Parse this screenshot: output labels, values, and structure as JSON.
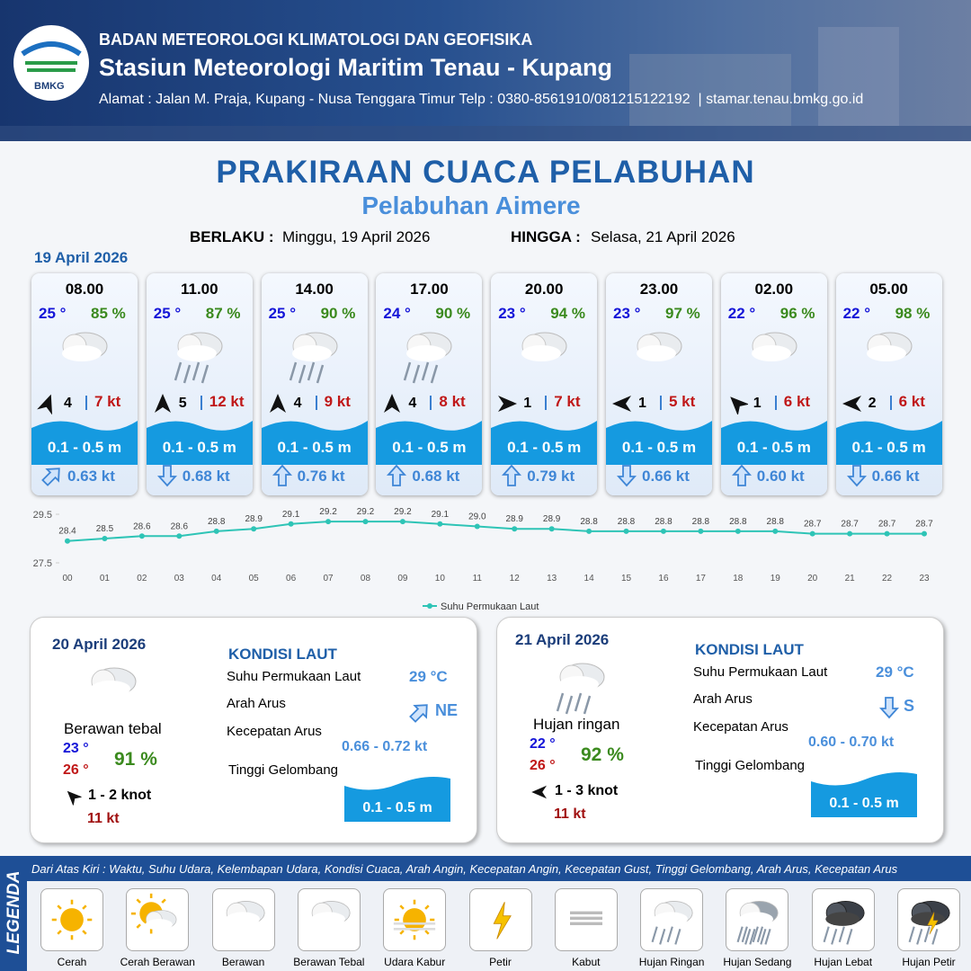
{
  "header": {
    "logo": "BMKG",
    "agency": "BADAN METEOROLOGI KLIMATOLOGI DAN GEOFISIKA",
    "station": "Stasiun Meteorologi Maritim Tenau - Kupang",
    "address": "Alamat : Jalan M. Praja, Kupang - Nusa Tenggara Timur Telp : 0380-8561910/081215122192  | stamar.tenau.bmkg.go.id"
  },
  "title": "PRAKIRAAN CUACA PELABUHAN",
  "subtitle": "Pelabuhan Aimere",
  "validity": {
    "from_label": "BERLAKU :",
    "from": "Minggu, 19 April 2026",
    "until_label": "HINGGA :",
    "until": "Selasa, 21 April 2026"
  },
  "today": {
    "date": "19 April 2026",
    "forecasts": [
      {
        "time": "08.00",
        "temp": "25 °",
        "humidity": "85 %",
        "wind": "4",
        "gust": "7 kt",
        "wave": "0.1 - 0.5 m",
        "current": "0.63 kt"
      },
      {
        "time": "11.00",
        "temp": "25 °",
        "humidity": "87 %",
        "wind": "5",
        "gust": "12 kt",
        "wave": "0.1 - 0.5 m",
        "current": "0.68 kt"
      },
      {
        "time": "14.00",
        "temp": "25 °",
        "humidity": "90 %",
        "wind": "4",
        "gust": "9 kt",
        "wave": "0.1 - 0.5 m",
        "current": "0.76 kt"
      },
      {
        "time": "17.00",
        "temp": "24 °",
        "humidity": "90 %",
        "wind": "4",
        "gust": "8 kt",
        "wave": "0.1 - 0.5 m",
        "current": "0.68 kt"
      },
      {
        "time": "20.00",
        "temp": "23 °",
        "humidity": "94 %",
        "wind": "1",
        "gust": "7 kt",
        "wave": "0.1 - 0.5 m",
        "current": "0.79 kt"
      },
      {
        "time": "23.00",
        "temp": "23 °",
        "humidity": "97 %",
        "wind": "1",
        "gust": "5 kt",
        "wave": "0.1 - 0.5 m",
        "current": "0.66 kt"
      },
      {
        "time": "02.00",
        "temp": "22 °",
        "humidity": "96 %",
        "wind": "1",
        "gust": "6 kt",
        "wave": "0.1 - 0.5 m",
        "current": "0.60 kt"
      },
      {
        "time": "05.00",
        "temp": "22 °",
        "humidity": "98 %",
        "wind": "2",
        "gust": "6 kt",
        "wave": "0.1 - 0.5 m",
        "current": "0.66 kt"
      }
    ]
  },
  "chart_data": {
    "type": "line",
    "categories": [
      "00",
      "01",
      "02",
      "03",
      "04",
      "05",
      "06",
      "07",
      "08",
      "09",
      "10",
      "11",
      "12",
      "13",
      "14",
      "15",
      "16",
      "17",
      "18",
      "19",
      "20",
      "21",
      "22",
      "23"
    ],
    "series": [
      {
        "name": "Suhu Permukaan Laut",
        "color": "#2ec4b6",
        "values": [
          28.4,
          28.5,
          28.6,
          28.6,
          28.8,
          28.9,
          29.1,
          29.2,
          29.2,
          29.2,
          29.1,
          29.0,
          28.9,
          28.9,
          28.8,
          28.8,
          28.8,
          28.8,
          28.8,
          28.8,
          28.7,
          28.7,
          28.7,
          28.7
        ],
        "value_labels": [
          "28.4",
          "28.5",
          "28.6",
          "28.6",
          "28.8",
          "28.9",
          "29.1",
          "29.2",
          "29.2",
          "29.2",
          "29.1",
          "29.0",
          "28.9",
          "28.9",
          "28.8",
          "28.8",
          "28.8",
          "28.8",
          "28.8",
          "28.8",
          "28.7",
          "28.7",
          "28.7",
          "28.7"
        ]
      }
    ],
    "ylim": [
      27.5,
      29.5
    ],
    "yticks": [
      27.5,
      29.5
    ],
    "legend": "bottom"
  },
  "outlook": [
    {
      "date": "20 April 2026",
      "condition": "Berawan tebal",
      "temp_min": "23 °",
      "temp_max": "26 °",
      "humidity": "91 %",
      "wind": "1 - 2 knot",
      "gust": "11 kt",
      "sea": {
        "heading": "KONDISI LAUT",
        "sst_label": "Suhu Permukaan Laut",
        "sst": "29 °C",
        "dir_label": "Arah Arus",
        "dir": "NE",
        "speed_label": "Kecepatan Arus",
        "speed": "0.66 - 0.72 kt",
        "wave_label": "Tinggi Gelombang",
        "wave": "0.1 - 0.5 m"
      }
    },
    {
      "date": "21 April 2026",
      "condition": "Hujan ringan",
      "temp_min": "22 °",
      "temp_max": "26 °",
      "humidity": "92 %",
      "wind": "1 - 3 knot",
      "gust": "11 kt",
      "sea": {
        "heading": "KONDISI LAUT",
        "sst_label": "Suhu Permukaan Laut",
        "sst": "29 °C",
        "dir_label": "Arah Arus",
        "dir": "S",
        "speed_label": "Kecepatan Arus",
        "speed": "0.60 - 0.70 kt",
        "wave_label": "Tinggi Gelombang",
        "wave": "0.1 - 0.5 m"
      }
    }
  ],
  "legend": {
    "title": "LEGENDA",
    "description": "Dari Atas Kiri : Waktu, Suhu Udara, Kelembapan Udara, Kondisi Cuaca, Arah Angin, Kecepatan Angin, Kecepatan Gust, Tinggi Gelombang, Arah Arus, Kecepatan Arus",
    "items": [
      "Cerah",
      "Cerah Berawan",
      "Berawan",
      "Berawan Tebal",
      "Udara Kabur",
      "Petir",
      "Kabut",
      "Hujan Ringan",
      "Hujan Sedang",
      "Hujan Lebat",
      "Hujan Petir"
    ]
  }
}
